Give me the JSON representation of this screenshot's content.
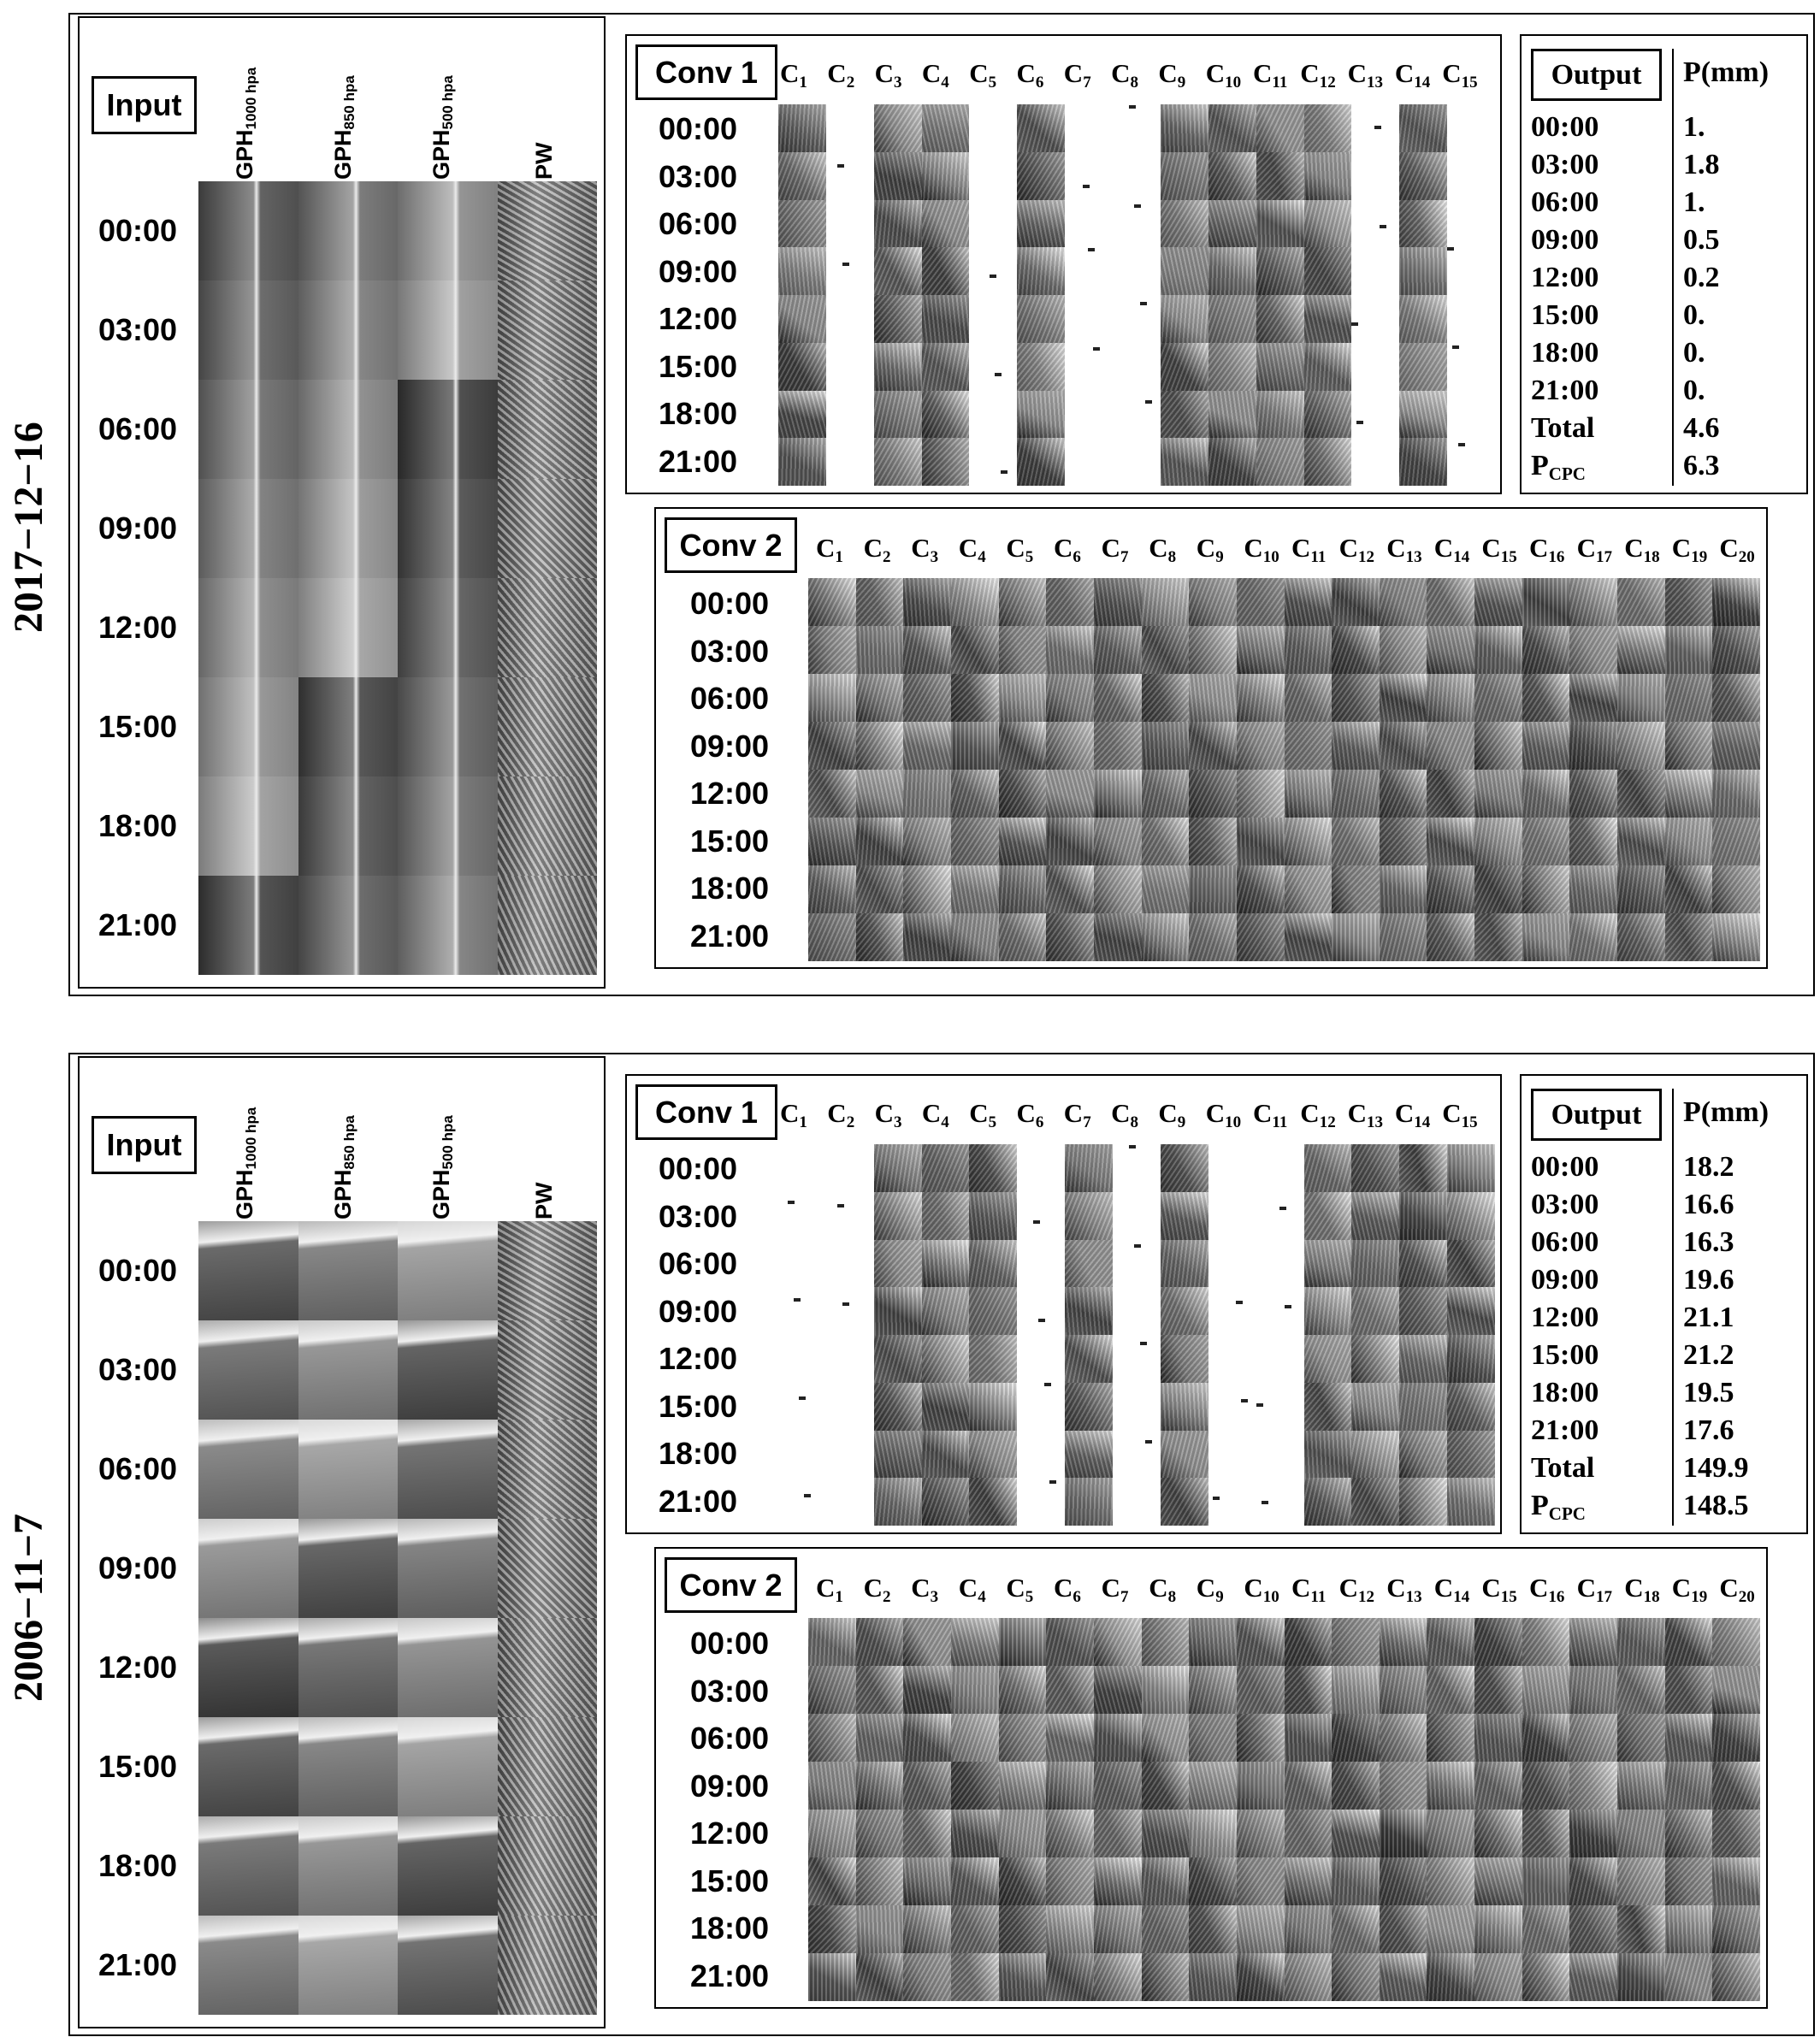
{
  "panels": [
    {
      "date": "2017−12−16",
      "input": {
        "label": "Input",
        "columns": [
          {
            "base": "GPH",
            "sub": "1000 hpa"
          },
          {
            "base": "GPH",
            "sub": "850 hpa"
          },
          {
            "base": "GPH",
            "sub": "500 hpa"
          },
          {
            "base": "PW",
            "sub": ""
          }
        ],
        "times": [
          "00:00",
          "03:00",
          "06:00",
          "09:00",
          "12:00",
          "15:00",
          "18:00",
          "21:00"
        ],
        "style": "vertical"
      },
      "conv1": {
        "label": "Conv 1",
        "channels": [
          "1",
          "2",
          "3",
          "4",
          "5",
          "6",
          "7",
          "8",
          "9",
          "10",
          "11",
          "12",
          "13",
          "14",
          "15"
        ],
        "times": [
          "00:00",
          "03:00",
          "06:00",
          "09:00",
          "12:00",
          "15:00",
          "18:00",
          "21:00"
        ],
        "blank_channels": [
          2,
          5,
          7,
          8,
          13,
          15
        ]
      },
      "conv2": {
        "label": "Conv 2",
        "channels": [
          "1",
          "2",
          "3",
          "4",
          "5",
          "6",
          "7",
          "8",
          "9",
          "10",
          "11",
          "12",
          "13",
          "14",
          "15",
          "16",
          "17",
          "18",
          "19",
          "20"
        ],
        "times": [
          "00:00",
          "03:00",
          "06:00",
          "09:00",
          "12:00",
          "15:00",
          "18:00",
          "21:00"
        ]
      },
      "output": {
        "label": "Output",
        "unit_header": "P(mm)",
        "rows": [
          {
            "time": "00:00",
            "value": "1."
          },
          {
            "time": "03:00",
            "value": "1.8"
          },
          {
            "time": "06:00",
            "value": "1."
          },
          {
            "time": "09:00",
            "value": "0.5"
          },
          {
            "time": "12:00",
            "value": "0.2"
          },
          {
            "time": "15:00",
            "value": "0."
          },
          {
            "time": "18:00",
            "value": "0."
          },
          {
            "time": "21:00",
            "value": "0."
          }
        ],
        "total_label": "Total",
        "total_value": "4.6",
        "cpc_base": "P",
        "cpc_sub": "CPC",
        "cpc_value": "6.3"
      }
    },
    {
      "date": "2006−11−7",
      "input": {
        "label": "Input",
        "columns": [
          {
            "base": "GPH",
            "sub": "1000 hpa"
          },
          {
            "base": "GPH",
            "sub": "850 hpa"
          },
          {
            "base": "GPH",
            "sub": "500 hpa"
          },
          {
            "base": "PW",
            "sub": ""
          }
        ],
        "times": [
          "00:00",
          "03:00",
          "06:00",
          "09:00",
          "12:00",
          "15:00",
          "18:00",
          "21:00"
        ],
        "style": "horizontal"
      },
      "conv1": {
        "label": "Conv 1",
        "channels": [
          "1",
          "2",
          "3",
          "4",
          "5",
          "6",
          "7",
          "8",
          "9",
          "10",
          "11",
          "12",
          "13",
          "14",
          "15"
        ],
        "times": [
          "00:00",
          "03:00",
          "06:00",
          "09:00",
          "12:00",
          "15:00",
          "18:00",
          "21:00"
        ],
        "blank_channels": [
          1,
          2,
          6,
          8,
          10,
          11
        ]
      },
      "conv2": {
        "label": "Conv 2",
        "channels": [
          "1",
          "2",
          "3",
          "4",
          "5",
          "6",
          "7",
          "8",
          "9",
          "10",
          "11",
          "12",
          "13",
          "14",
          "15",
          "16",
          "17",
          "18",
          "19",
          "20"
        ],
        "times": [
          "00:00",
          "03:00",
          "06:00",
          "09:00",
          "12:00",
          "15:00",
          "18:00",
          "21:00"
        ]
      },
      "output": {
        "label": "Output",
        "unit_header": "P(mm)",
        "rows": [
          {
            "time": "00:00",
            "value": "18.2"
          },
          {
            "time": "03:00",
            "value": "16.6"
          },
          {
            "time": "06:00",
            "value": "16.3"
          },
          {
            "time": "09:00",
            "value": "19.6"
          },
          {
            "time": "12:00",
            "value": "21.1"
          },
          {
            "time": "15:00",
            "value": "21.2"
          },
          {
            "time": "18:00",
            "value": "19.5"
          },
          {
            "time": "21:00",
            "value": "17.6"
          }
        ],
        "total_label": "Total",
        "total_value": "149.9",
        "cpc_base": "P",
        "cpc_sub": "CPC",
        "cpc_value": "148.5"
      }
    }
  ]
}
